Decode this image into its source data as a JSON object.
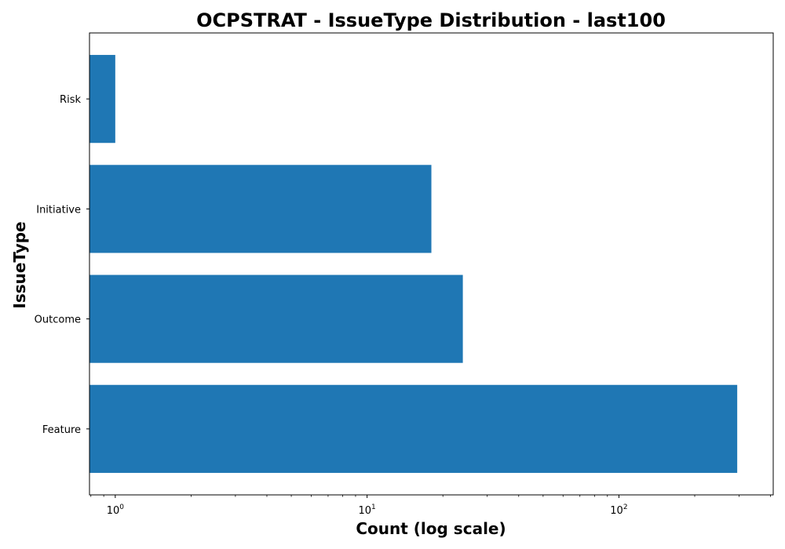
{
  "chart_data": {
    "type": "bar",
    "orientation": "horizontal",
    "title": "OCPSTRAT - IssueType Distribution - last100",
    "xlabel": "Count (log scale)",
    "ylabel": "IssueType",
    "xscale": "log",
    "xlim": [
      0.79,
      410
    ],
    "categories": [
      "Feature",
      "Outcome",
      "Initiative",
      "Risk"
    ],
    "values": [
      295,
      24,
      18,
      1
    ],
    "x_ticks": [
      {
        "value": 1,
        "base": "10",
        "exp": "0"
      },
      {
        "value": 10,
        "base": "10",
        "exp": "1"
      },
      {
        "value": 100,
        "base": "10",
        "exp": "2"
      }
    ],
    "grid": false,
    "legend": "none",
    "colors": {
      "bar": "#1f77b4",
      "axis": "#000000",
      "background": "#ffffff"
    }
  }
}
